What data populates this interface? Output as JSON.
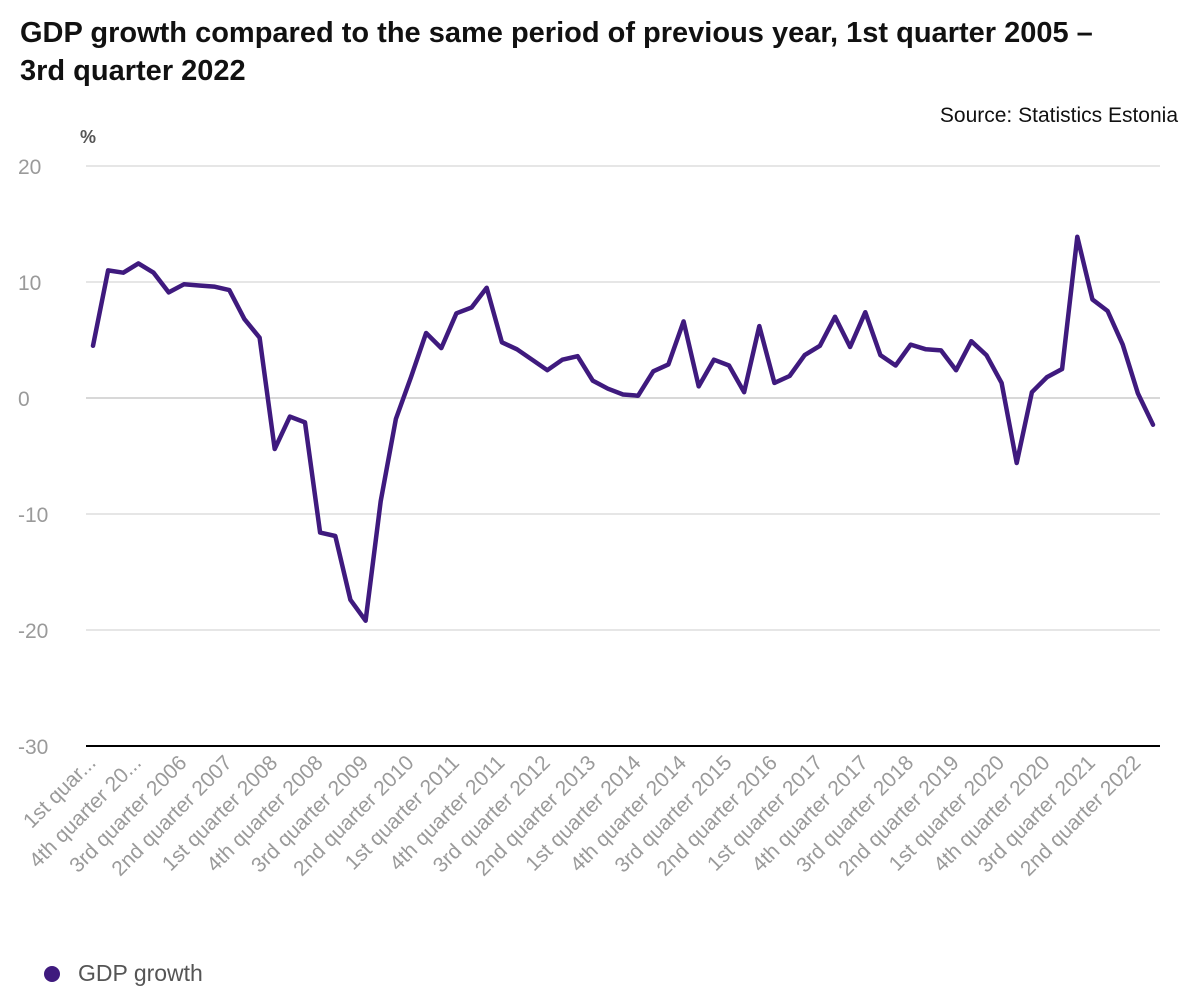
{
  "chart_data": {
    "type": "line",
    "title": "GDP growth compared to the same period of previous year, 1st quarter 2005 – 3rd quarter 2022",
    "source": "Source: Statistics Estonia",
    "ylabel": "%",
    "xlabel": "",
    "ylim": [
      -30,
      20
    ],
    "yticks": [
      20,
      10,
      0,
      -10,
      -20,
      -30
    ],
    "grid": true,
    "legend": "bottom-left",
    "colors": {
      "series": "#3f1a7e",
      "grid": "#dddddd",
      "zero_line": "#cccccc",
      "axis": "#000000",
      "tick_text": "#9a9a9a"
    },
    "x": [
      "1st quarter 2005",
      "2nd quarter 2005",
      "3rd quarter 2005",
      "4th quarter 2005",
      "1st quarter 2006",
      "2nd quarter 2006",
      "3rd quarter 2006",
      "4th quarter 2006",
      "1st quarter 2007",
      "2nd quarter 2007",
      "3rd quarter 2007",
      "4th quarter 2007",
      "1st quarter 2008",
      "2nd quarter 2008",
      "3rd quarter 2008",
      "4th quarter 2008",
      "1st quarter 2009",
      "2nd quarter 2009",
      "3rd quarter 2009",
      "4th quarter 2009",
      "1st quarter 2010",
      "2nd quarter 2010",
      "3rd quarter 2010",
      "4th quarter 2010",
      "1st quarter 2011",
      "2nd quarter 2011",
      "3rd quarter 2011",
      "4th quarter 2011",
      "1st quarter 2012",
      "2nd quarter 2012",
      "3rd quarter 2012",
      "4th quarter 2012",
      "1st quarter 2013",
      "2nd quarter 2013",
      "3rd quarter 2013",
      "4th quarter 2013",
      "1st quarter 2014",
      "2nd quarter 2014",
      "3rd quarter 2014",
      "4th quarter 2014",
      "1st quarter 2015",
      "2nd quarter 2015",
      "3rd quarter 2015",
      "4th quarter 2015",
      "1st quarter 2016",
      "2nd quarter 2016",
      "3rd quarter 2016",
      "4th quarter 2016",
      "1st quarter 2017",
      "2nd quarter 2017",
      "3rd quarter 2017",
      "4th quarter 2017",
      "1st quarter 2018",
      "2nd quarter 2018",
      "3rd quarter 2018",
      "4th quarter 2018",
      "1st quarter 2019",
      "2nd quarter 2019",
      "3rd quarter 2019",
      "4th quarter 2019",
      "1st quarter 2020",
      "2nd quarter 2020",
      "3rd quarter 2020",
      "4th quarter 2020",
      "1st quarter 2021",
      "2nd quarter 2021",
      "3rd quarter 2021",
      "4th quarter 2021",
      "1st quarter 2022",
      "2nd quarter 2022",
      "3rd quarter 2022"
    ],
    "tick_labels": [
      "1st quar...",
      "4th quarter 20...",
      "3rd quarter 2006",
      "2nd quarter 2007",
      "1st quarter 2008",
      "4th quarter 2008",
      "3rd quarter 2009",
      "2nd quarter 2010",
      "1st quarter 2011",
      "4th quarter 2011",
      "3rd quarter 2012",
      "2nd quarter 2013",
      "1st quarter 2014",
      "4th quarter 2014",
      "3rd quarter 2015",
      "2nd quarter 2016",
      "1st quarter 2017",
      "4th quarter 2017",
      "3rd quarter 2018",
      "2nd quarter 2019",
      "1st quarter 2020",
      "4th quarter 2020",
      "3rd quarter 2021",
      "2nd quarter 2022"
    ],
    "series": [
      {
        "name": "GDP growth",
        "values": [
          4.5,
          11.0,
          10.8,
          11.6,
          10.8,
          9.1,
          9.8,
          9.7,
          9.6,
          9.3,
          6.8,
          5.2,
          -4.4,
          -1.6,
          -2.1,
          -11.6,
          -11.9,
          -17.4,
          -19.2,
          -8.9,
          -1.8,
          1.8,
          5.6,
          4.3,
          7.3,
          7.8,
          9.5,
          4.8,
          4.2,
          3.3,
          2.4,
          3.3,
          3.6,
          1.5,
          0.8,
          0.3,
          0.2,
          2.3,
          2.9,
          6.6,
          1.0,
          3.3,
          2.8,
          0.5,
          6.2,
          1.3,
          1.9,
          3.7,
          4.5,
          7.0,
          4.4,
          7.4,
          3.7,
          2.8,
          4.6,
          4.2,
          4.1,
          2.4,
          4.9,
          3.7,
          1.3,
          -5.6,
          0.5,
          1.8,
          2.5,
          13.9,
          8.5,
          7.5,
          4.6,
          0.4,
          -2.3
        ]
      }
    ]
  }
}
